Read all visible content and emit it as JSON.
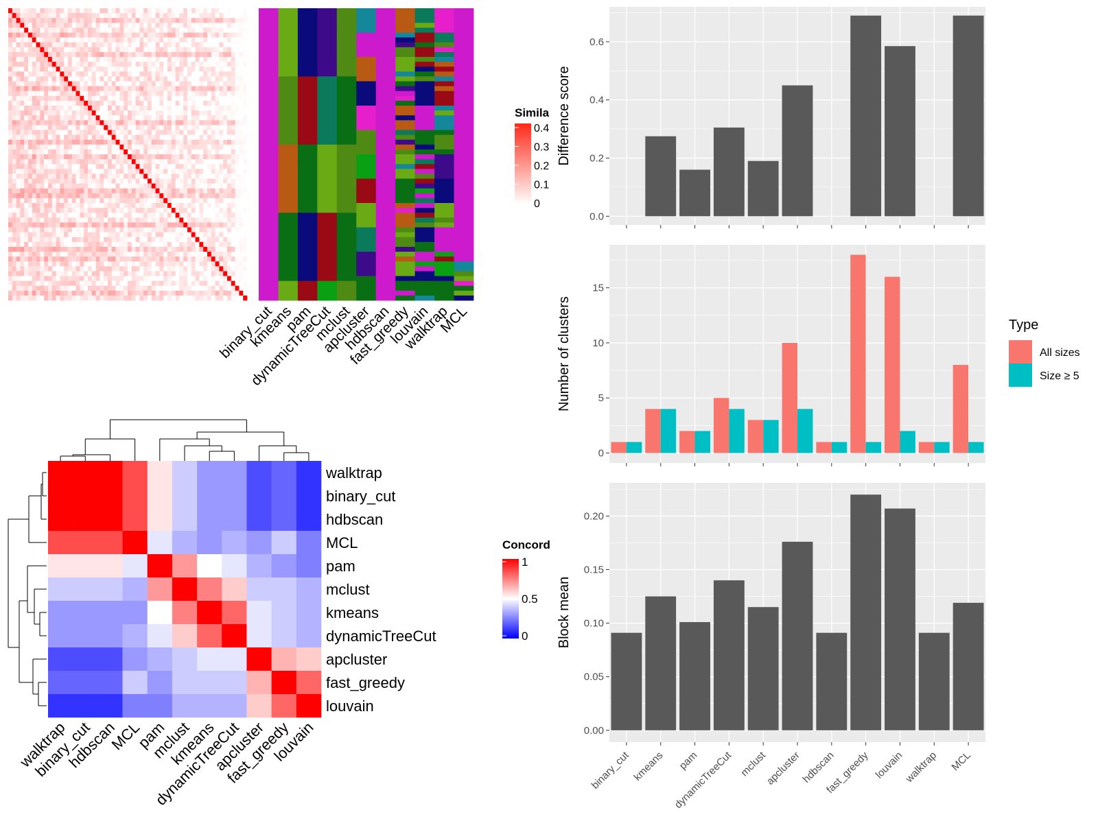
{
  "methods": [
    "binary_cut",
    "kmeans",
    "pam",
    "dynamicTreeCut",
    "mclust",
    "apcluster",
    "hdbscan",
    "fast_greedy",
    "louvain",
    "walktrap",
    "MCL"
  ],
  "similarity_legend": {
    "title": "Simila",
    "ticks": [
      "0.4",
      "0.3",
      "0.2",
      "0.1",
      "0"
    ]
  },
  "concordance_legend": {
    "title": "Concord",
    "ticks": [
      "1",
      "0.5",
      "0"
    ]
  },
  "type_legend": {
    "title": "Type",
    "entries": [
      "All sizes",
      "Size ≥ 5"
    ],
    "colors": [
      "#f8766d",
      "#00bfc4"
    ]
  },
  "colors": {
    "panel_bg": "#ebebeb",
    "grid": "#ffffff",
    "bar": "#595959",
    "heat_high": "#ff0000",
    "heat_low": "#ffffff",
    "conc_low": "#0000ff",
    "class_palette": [
      "#cc1acc",
      "#6aaa14",
      "#0a0a7a",
      "#3d0a8a",
      "#4e8a14",
      "#14889a",
      "#9a0a14",
      "#b85a14",
      "#0a7a5a",
      "#e61ecc",
      "#0a6e14",
      "#0aa014"
    ]
  },
  "heatmap_rows": 60,
  "chart_data": [
    {
      "type": "heatmap",
      "title": "",
      "legend_title": "Simila",
      "value_range": [
        0,
        0.4
      ],
      "note_values": "60x60 similarity matrix, diagonal = high, off-diagonal low (~0-0.15)"
    },
    {
      "type": "heatmap",
      "title": "",
      "legend_title": "Concord",
      "value_range": [
        0,
        1
      ],
      "rows": [
        "walktrap",
        "binary_cut",
        "hdbscan",
        "MCL",
        "pam",
        "mclust",
        "kmeans",
        "dynamicTreeCut",
        "apcluster",
        "fast_greedy",
        "louvain"
      ],
      "columns": [
        "walktrap",
        "binary_cut",
        "hdbscan",
        "MCL",
        "pam",
        "mclust",
        "kmeans",
        "dynamicTreeCut",
        "apcluster",
        "fast_greedy",
        "louvain"
      ],
      "values": [
        [
          1,
          1,
          1,
          0.85,
          0.55,
          0.4,
          0.3,
          0.3,
          0.15,
          0.2,
          0.1
        ],
        [
          1,
          1,
          1,
          0.85,
          0.55,
          0.4,
          0.3,
          0.3,
          0.15,
          0.2,
          0.1
        ],
        [
          1,
          1,
          1,
          0.85,
          0.55,
          0.4,
          0.3,
          0.3,
          0.15,
          0.2,
          0.1
        ],
        [
          0.85,
          0.85,
          0.85,
          1,
          0.45,
          0.35,
          0.3,
          0.35,
          0.3,
          0.4,
          0.25
        ],
        [
          0.55,
          0.55,
          0.55,
          0.45,
          1,
          0.7,
          0.5,
          0.45,
          0.35,
          0.3,
          0.25
        ],
        [
          0.4,
          0.4,
          0.4,
          0.35,
          0.7,
          1,
          0.75,
          0.6,
          0.4,
          0.4,
          0.35
        ],
        [
          0.3,
          0.3,
          0.3,
          0.3,
          0.5,
          0.75,
          1,
          0.8,
          0.45,
          0.4,
          0.35
        ],
        [
          0.3,
          0.3,
          0.3,
          0.35,
          0.45,
          0.6,
          0.8,
          1,
          0.45,
          0.4,
          0.35
        ],
        [
          0.15,
          0.15,
          0.15,
          0.3,
          0.35,
          0.4,
          0.45,
          0.45,
          1,
          0.65,
          0.6
        ],
        [
          0.2,
          0.2,
          0.2,
          0.4,
          0.3,
          0.4,
          0.4,
          0.4,
          0.65,
          1,
          0.8
        ],
        [
          0.1,
          0.1,
          0.1,
          0.25,
          0.25,
          0.35,
          0.35,
          0.35,
          0.6,
          0.8,
          1
        ]
      ]
    },
    {
      "type": "bar",
      "categories": [
        "binary_cut",
        "kmeans",
        "pam",
        "dynamicTreeCut",
        "mclust",
        "apcluster",
        "hdbscan",
        "fast_greedy",
        "louvain",
        "walktrap",
        "MCL"
      ],
      "values": [
        0,
        0.275,
        0.16,
        0.305,
        0.19,
        0.45,
        0,
        0.69,
        0.585,
        0,
        0.69
      ],
      "xlabel": "",
      "ylabel": "Difference score",
      "ylim": [
        -0.03,
        0.72
      ],
      "yticks": [
        "0.0",
        "0.2",
        "0.4",
        "0.6"
      ],
      "grid": true
    },
    {
      "type": "bar",
      "categories": [
        "binary_cut",
        "kmeans",
        "pam",
        "dynamicTreeCut",
        "mclust",
        "apcluster",
        "hdbscan",
        "fast_greedy",
        "louvain",
        "walktrap",
        "MCL"
      ],
      "series": [
        {
          "name": "All sizes",
          "values": [
            1,
            4,
            2,
            5,
            3,
            10,
            1,
            18,
            16,
            1,
            8
          ]
        },
        {
          "name": "Size ≥ 5",
          "values": [
            1,
            4,
            2,
            4,
            3,
            4,
            1,
            1,
            2,
            1,
            1
          ]
        }
      ],
      "xlabel": "",
      "ylabel": "Number of clusters",
      "ylim": [
        -0.9,
        18.9
      ],
      "yticks": [
        "0",
        "5",
        "10",
        "15"
      ],
      "legend": "right",
      "grid": true
    },
    {
      "type": "bar",
      "categories": [
        "binary_cut",
        "kmeans",
        "pam",
        "dynamicTreeCut",
        "mclust",
        "apcluster",
        "hdbscan",
        "fast_greedy",
        "louvain",
        "walktrap",
        "MCL"
      ],
      "values": [
        0.091,
        0.125,
        0.101,
        0.14,
        0.115,
        0.176,
        0.091,
        0.22,
        0.207,
        0.091,
        0.119
      ],
      "xlabel": "",
      "ylabel": "Block mean",
      "ylim": [
        -0.011,
        0.231
      ],
      "yticks": [
        "0.00",
        "0.05",
        "0.10",
        "0.15",
        "0.20"
      ],
      "grid": true
    }
  ]
}
